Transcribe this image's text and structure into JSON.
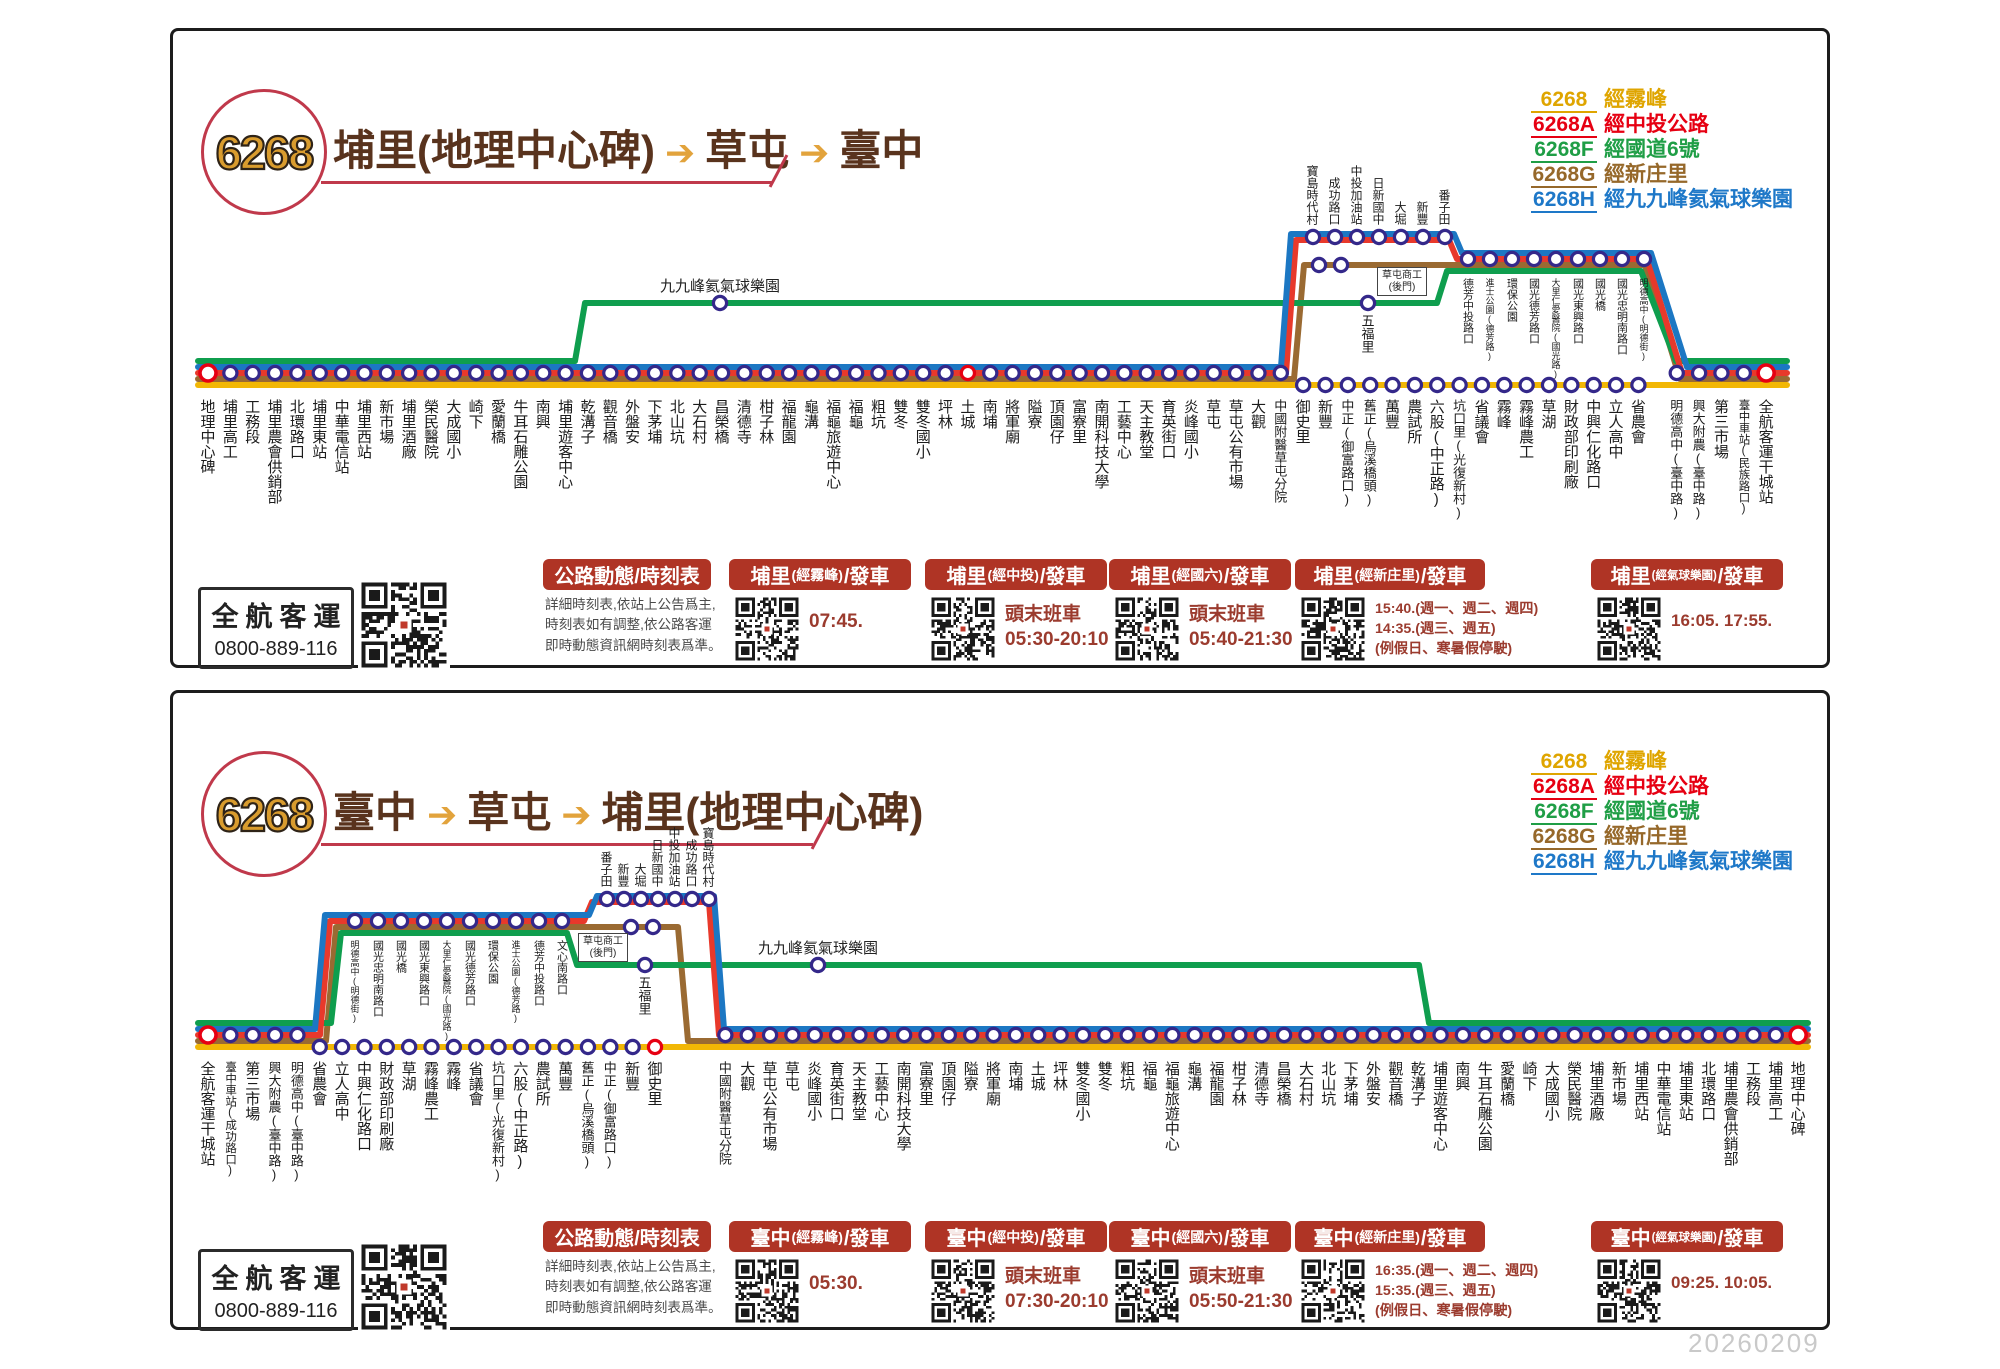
{
  "watermark": "20260209",
  "company": {
    "name": "全航客運",
    "phone": "0800-889-116"
  },
  "notice_title": "公路動態/時刻表",
  "notes": [
    "詳細時刻表,依站上公告爲主,",
    "時刻表如有調整,依公路客運",
    "即時動態資訊網時刻表爲準。"
  ],
  "legend": [
    {
      "code": "6268",
      "desc": "經霧峰",
      "color": "#DFA500"
    },
    {
      "code": "6268A",
      "desc": "經中投公路",
      "color": "#E60012"
    },
    {
      "code": "6268F",
      "desc": "經國道6號",
      "color": "#1F9E46"
    },
    {
      "code": "6268G",
      "desc": "經新庄里",
      "color": "#96682A"
    },
    {
      "code": "6268H",
      "desc": "經九九峰氦氣球樂園",
      "color": "#1E78C8"
    }
  ],
  "panels": [
    {
      "route_no": "6268",
      "title_parts": [
        "埔里(地理中心碑)",
        "草屯",
        "臺中"
      ],
      "main_stops": [
        "地理中心碑",
        "埔里高工",
        "工務段",
        "埔里農會供銷部",
        "北環路口",
        "埔里東站",
        "中華電信站",
        "埔里西站",
        "新市場",
        "埔里酒廠",
        "榮民醫院",
        "大成國小",
        "崎下",
        "愛蘭橋",
        "牛耳石雕公園",
        "南興",
        "埔里遊客中心",
        "乾溝子",
        "觀音橋",
        "外盤安",
        "下茅埔",
        "北山坑",
        "大石村",
        "昌榮橋",
        "清德寺",
        "柑子林",
        "福龍園",
        "龜溝",
        "福龜旅遊中心",
        "福龜",
        "粗坑",
        "雙冬",
        "雙冬國小",
        "坪林",
        "土城",
        "南埔",
        "將軍廟",
        "隘寮",
        "頂園仔",
        "富寮里",
        "南開科技大學",
        "工藝中心",
        "天主教堂",
        "育英街口",
        "炎峰國小",
        "草屯",
        "草屯公有市場",
        "大觀",
        "中國附醫草屯分院",
        "御史里",
        "新豐",
        "中正(御富路口)",
        "舊正(烏溪橋頭)",
        "萬豐",
        "農試所",
        "六股(中正路)",
        "坑口里(光復新村)",
        "省議會",
        "霧峰",
        "霧峰農工",
        "草湖",
        "財政部印刷廠",
        "中興仁化路口",
        "立人高中",
        "省農會",
        "明德高中(臺中路)",
        "興大附農(臺中路)",
        "第三市場",
        "臺中車站(民族路口)",
        "全航客運干城站"
      ],
      "upper_stops": [
        "寶島時代村",
        "成功路口",
        "中投加油站",
        "日新國中",
        "大堀",
        "新豐",
        "番子田"
      ],
      "band_stops": [
        "德芳中投路口",
        "進士公園(德芳路)",
        "環保公園",
        "國光德芳路口",
        "大里仁愛醫院(國光路)",
        "國光東興路口",
        "國光橋",
        "國光忠明南路口",
        "明德高中(明德街)"
      ],
      "box_label": "草屯商工(後門)",
      "green_stops": [
        {
          "name": "九九峰氦氣球樂園",
          "horizontal": true
        },
        {
          "name": "五福里",
          "horizontal": false
        }
      ],
      "schedules": [
        {
          "place": "埔里",
          "via": "(經霧峰)",
          "suffix": "/發車",
          "lines": [
            "07:45."
          ]
        },
        {
          "place": "埔里",
          "via": "(經中投)",
          "suffix": "/發車",
          "lines": [
            "頭末班車",
            "05:30-20:10"
          ]
        },
        {
          "place": "埔里",
          "via": "(經國六)",
          "suffix": "/發車",
          "lines": [
            "頭末班車",
            "05:40-21:30"
          ]
        },
        {
          "place": "埔里",
          "via": "(經新庄里)",
          "suffix": "/發車",
          "lines": [
            "15:40.(週一、週二、週四)",
            "14:35.(週三、週五)",
            "(例假日、寒暑假停駛)"
          ]
        },
        {
          "place": "埔里",
          "via": "(經氣球樂園)",
          "suffix": "/發車",
          "lines": [
            "16:05. 17:55."
          ]
        }
      ]
    },
    {
      "route_no": "6268",
      "title_parts": [
        "臺中",
        "草屯",
        "埔里(地理中心碑)"
      ],
      "main_stops": [
        "全航客運干城站",
        "臺中車站(成功路口)",
        "第三市場",
        "興大附農(臺中路)",
        "明德高中(臺中路)",
        "省農會",
        "立人高中",
        "中興仁化路口",
        "財政部印刷廠",
        "草湖",
        "霧峰農工",
        "霧峰",
        "省議會",
        "坑口里(光復新村)",
        "六股(中正路)",
        "農試所",
        "萬豐",
        "舊正(烏溪橋頭)",
        "中正(御富路口)",
        "新豐",
        "御史里",
        "中國附醫草屯分院",
        "大觀",
        "草屯公有市場",
        "草屯",
        "炎峰國小",
        "育英街口",
        "天主教堂",
        "工藝中心",
        "南開科技大學",
        "富寮里",
        "頂園仔",
        "隘寮",
        "將軍廟",
        "南埔",
        "土城",
        "坪林",
        "雙冬國小",
        "雙冬",
        "粗坑",
        "福龜",
        "福龜旅遊中心",
        "龜溝",
        "福龍園",
        "柑子林",
        "清德寺",
        "昌榮橋",
        "大石村",
        "北山坑",
        "下茅埔",
        "外盤安",
        "觀音橋",
        "乾溝子",
        "埔里遊客中心",
        "南興",
        "牛耳石雕公園",
        "愛蘭橋",
        "崎下",
        "大成國小",
        "榮民醫院",
        "埔里酒廠",
        "新市場",
        "埔里西站",
        "中華電信站",
        "埔里東站",
        "北環路口",
        "埔里農會供銷部",
        "工務段",
        "埔里高工",
        "地理中心碑"
      ],
      "upper_stops": [
        "番子田",
        "新豐",
        "大堀",
        "日新國中",
        "中投加油站",
        "成功路口",
        "寶島時代村"
      ],
      "band_stops": [
        "明德高中(明德街)",
        "國光忠明南路口",
        "國光橋",
        "國光東興路口",
        "大里仁愛醫院(國光路)",
        "國光德芳路口",
        "環保公園",
        "進士公園(德芳路)",
        "德芳中投路口",
        "文心南路口"
      ],
      "box_label": "草屯商工(後門)",
      "green_stops": [
        {
          "name": "五福里",
          "horizontal": false
        },
        {
          "name": "九九峰氦氣球樂園",
          "horizontal": true
        }
      ],
      "schedules": [
        {
          "place": "臺中",
          "via": "(經霧峰)",
          "suffix": "/發車",
          "lines": [
            "05:30."
          ]
        },
        {
          "place": "臺中",
          "via": "(經中投)",
          "suffix": "/發車",
          "lines": [
            "頭末班車",
            "07:30-20:10"
          ]
        },
        {
          "place": "臺中",
          "via": "(經國六)",
          "suffix": "/發車",
          "lines": [
            "頭末班車",
            "05:50-21:30"
          ]
        },
        {
          "place": "臺中",
          "via": "(經新庄里)",
          "suffix": "/發車",
          "lines": [
            "16:35.(週一、週二、週四)",
            "15:35.(週三、週五)",
            "(例假日、寒暑假停駛)"
          ]
        },
        {
          "place": "臺中",
          "via": "(經氣球樂園)",
          "suffix": "/發車",
          "lines": [
            "09:25. 10:05."
          ]
        }
      ]
    }
  ]
}
